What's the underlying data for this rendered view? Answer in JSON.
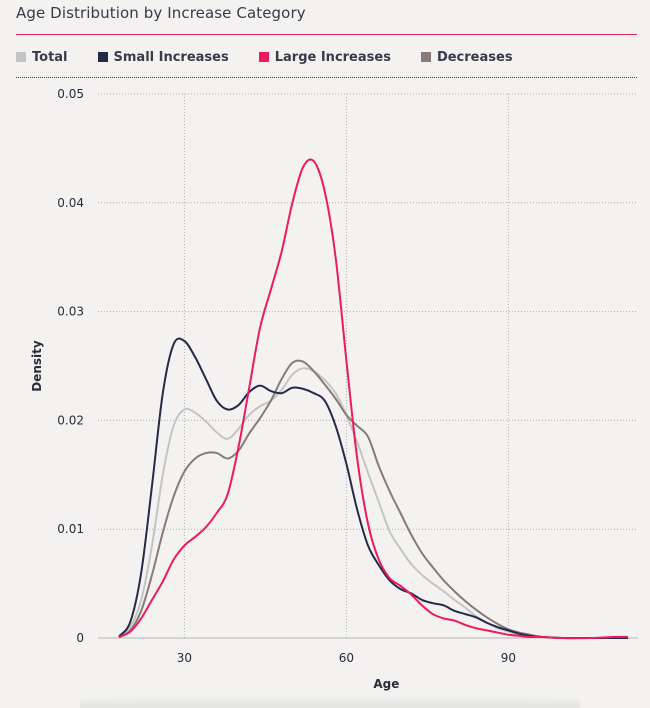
{
  "title": "Age Distribution by Increase Category",
  "colors": {
    "total": "#c4c4c4",
    "small": "#252a4a",
    "large": "#ee1a5e",
    "decreases": "#8a7a76",
    "accent": "#e0245e"
  },
  "chart_data": {
    "type": "line",
    "title": "Age Distribution by Increase Category",
    "xlabel": "Age",
    "ylabel": "Density",
    "xlim": [
      14,
      114
    ],
    "ylim": [
      0,
      0.05
    ],
    "xticks": [
      30,
      60,
      90
    ],
    "yticks": [
      0,
      0.01,
      0.02,
      0.03,
      0.04,
      0.05
    ],
    "ytick_labels": [
      "0",
      "0.01",
      "0.02",
      "0.03",
      "0.04",
      "0.05"
    ],
    "grid": true,
    "legend": "top-left",
    "series": [
      {
        "name": "Total",
        "key": "total",
        "x": [
          18,
          20,
          22,
          24,
          26,
          28,
          30,
          32,
          34,
          36,
          38,
          40,
          42,
          44,
          46,
          48,
          50,
          52,
          54,
          56,
          58,
          60,
          62,
          64,
          66,
          68,
          70,
          72,
          74,
          76,
          78,
          80,
          82,
          84,
          86,
          88,
          90,
          92,
          94,
          96,
          98,
          100,
          105,
          110,
          112
        ],
        "y": [
          0.0002,
          0.001,
          0.0035,
          0.0085,
          0.015,
          0.0195,
          0.021,
          0.0207,
          0.0199,
          0.0189,
          0.0183,
          0.0192,
          0.0205,
          0.0213,
          0.0218,
          0.0228,
          0.0242,
          0.0248,
          0.0245,
          0.0237,
          0.0225,
          0.0205,
          0.018,
          0.0152,
          0.0125,
          0.0098,
          0.0082,
          0.0068,
          0.0058,
          0.005,
          0.0043,
          0.0035,
          0.0028,
          0.002,
          0.0014,
          0.0009,
          0.0006,
          0.0003,
          0.0002,
          0.0001,
          5e-05,
          0.0,
          0.0,
          0.0,
          0.0
        ]
      },
      {
        "name": "Small Increases",
        "key": "small",
        "x": [
          18,
          20,
          22,
          24,
          26,
          28,
          30,
          32,
          34,
          36,
          38,
          40,
          42,
          44,
          46,
          48,
          50,
          52,
          54,
          56,
          58,
          60,
          62,
          64,
          66,
          68,
          70,
          72,
          74,
          76,
          78,
          80,
          82,
          84,
          86,
          88,
          90,
          92,
          94,
          96,
          100,
          105,
          110,
          112
        ],
        "y": [
          0.0002,
          0.0015,
          0.006,
          0.014,
          0.0225,
          0.027,
          0.0273,
          0.0258,
          0.0238,
          0.0218,
          0.021,
          0.0214,
          0.0226,
          0.0232,
          0.0227,
          0.0225,
          0.023,
          0.0229,
          0.0225,
          0.0218,
          0.0195,
          0.016,
          0.0118,
          0.0085,
          0.0067,
          0.0053,
          0.0045,
          0.0041,
          0.0035,
          0.0032,
          0.003,
          0.0025,
          0.0022,
          0.0019,
          0.0014,
          0.001,
          0.0007,
          0.0004,
          0.0002,
          0.0001,
          0.0,
          0.0,
          0.0,
          0.0
        ]
      },
      {
        "name": "Large Increases",
        "key": "large",
        "x": [
          18,
          20,
          22,
          24,
          26,
          28,
          30,
          32,
          34,
          36,
          38,
          40,
          42,
          44,
          46,
          48,
          50,
          52,
          54,
          56,
          58,
          60,
          62,
          64,
          66,
          68,
          70,
          72,
          74,
          76,
          78,
          80,
          82,
          84,
          86,
          88,
          90,
          92,
          94,
          96,
          100,
          105,
          110,
          112
        ],
        "y": [
          0.0001,
          0.0006,
          0.0018,
          0.0035,
          0.0052,
          0.0072,
          0.0085,
          0.0093,
          0.0102,
          0.0115,
          0.0132,
          0.0175,
          0.023,
          0.0285,
          0.032,
          0.0355,
          0.04,
          0.0433,
          0.0438,
          0.041,
          0.035,
          0.0255,
          0.0165,
          0.0105,
          0.0072,
          0.0055,
          0.0048,
          0.004,
          0.003,
          0.0022,
          0.0018,
          0.0016,
          0.0012,
          0.0009,
          0.0007,
          0.0005,
          0.0003,
          0.0002,
          0.0001,
          0.0001,
          0.0,
          0.0,
          0.0001,
          0.0001
        ]
      },
      {
        "name": "Decreases",
        "key": "decreases",
        "x": [
          18,
          20,
          22,
          24,
          26,
          28,
          30,
          32,
          34,
          36,
          38,
          40,
          42,
          44,
          46,
          48,
          50,
          52,
          54,
          56,
          58,
          60,
          62,
          64,
          66,
          68,
          70,
          72,
          74,
          76,
          78,
          80,
          82,
          84,
          86,
          88,
          90,
          92,
          94,
          96,
          98,
          100,
          105,
          110,
          112
        ],
        "y": [
          0.0001,
          0.0007,
          0.0025,
          0.0058,
          0.0097,
          0.013,
          0.0153,
          0.0165,
          0.017,
          0.017,
          0.0165,
          0.0172,
          0.0188,
          0.0202,
          0.0218,
          0.0238,
          0.0253,
          0.0254,
          0.0245,
          0.0233,
          0.022,
          0.0205,
          0.0195,
          0.0185,
          0.0158,
          0.0135,
          0.0115,
          0.0095,
          0.0078,
          0.0065,
          0.0053,
          0.0043,
          0.0034,
          0.0026,
          0.0019,
          0.0013,
          0.0008,
          0.0005,
          0.0003,
          0.0001,
          5e-05,
          0.0,
          0.0,
          0.0,
          0.0
        ]
      }
    ]
  }
}
